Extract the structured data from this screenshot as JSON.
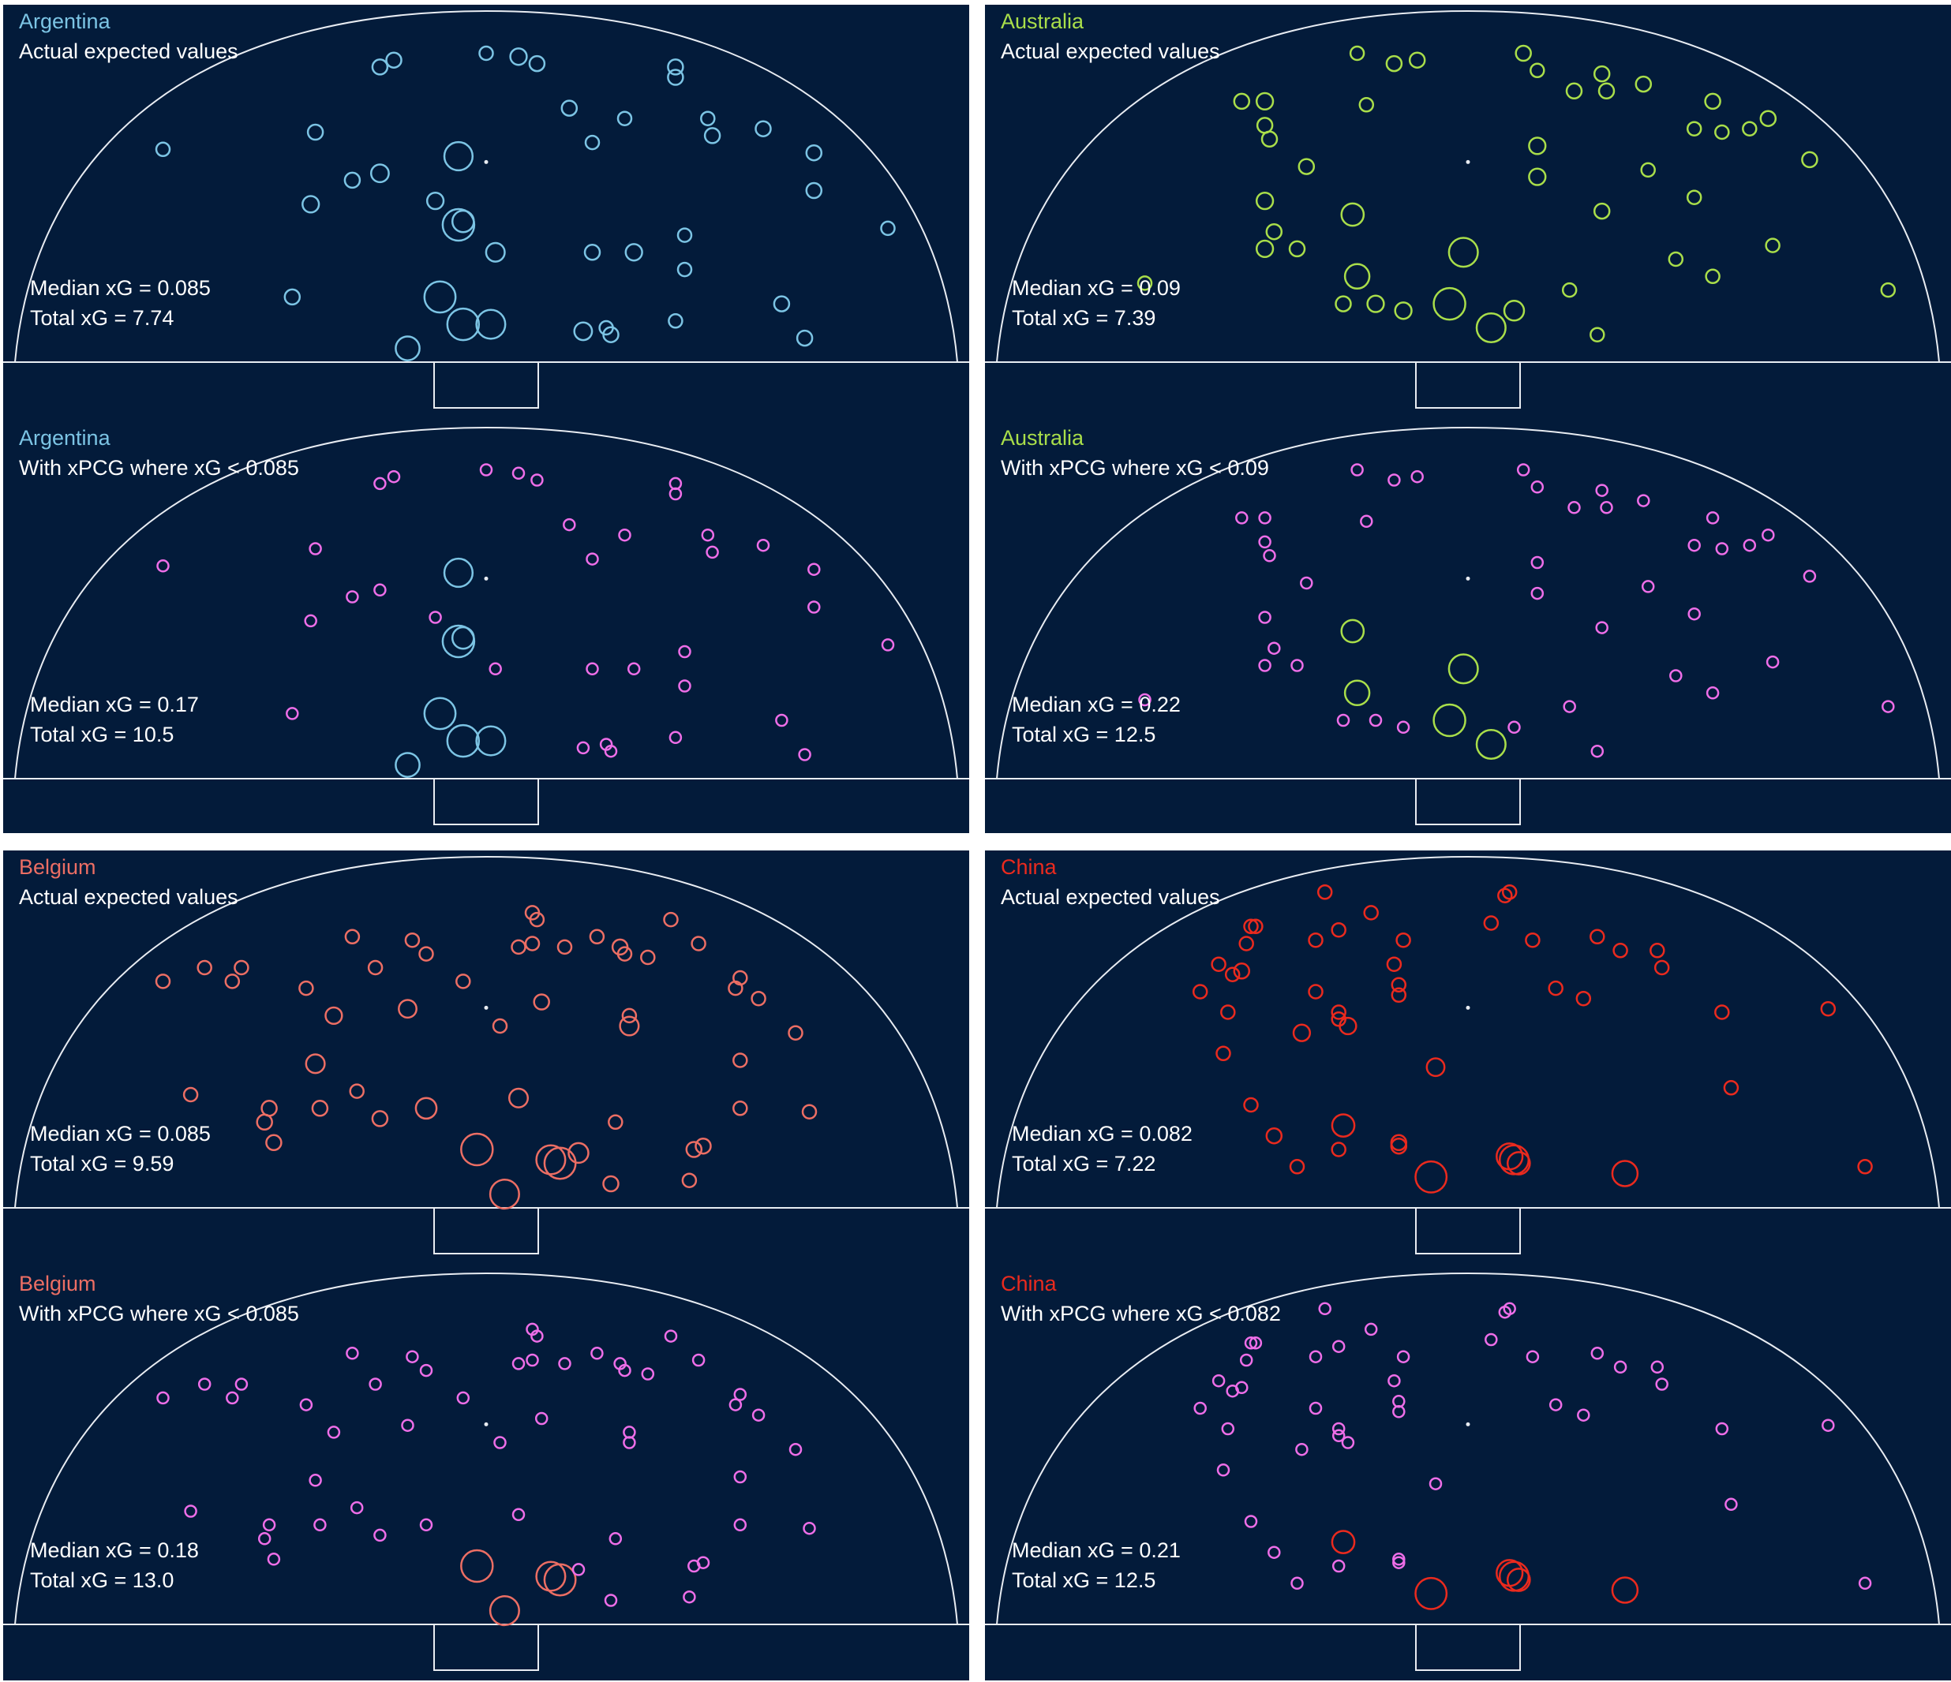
{
  "colors": {
    "background": "#ffffff",
    "panel": "#031b3a",
    "pitch_lines": "#e8ecf2",
    "text": "#ffffff",
    "xpcg": "#ee6ee8"
  },
  "chart_data": [
    {
      "id": "argentina",
      "type": "scatter",
      "team": "Argentina",
      "team_color": "#7cc4e4",
      "x_range": [
        -100,
        100
      ],
      "y_range": [
        0,
        100
      ],
      "shots": [
        {
          "x": -70,
          "y": 62,
          "xg": 0.02
        },
        {
          "x": -37,
          "y": 67,
          "xg": 0.03
        },
        {
          "x": -38,
          "y": 46,
          "xg": 0.04
        },
        {
          "x": -29,
          "y": 53,
          "xg": 0.03
        },
        {
          "x": -23,
          "y": 55,
          "xg": 0.05
        },
        {
          "x": -42,
          "y": 19,
          "xg": 0.03
        },
        {
          "x": -23,
          "y": 86,
          "xg": 0.03
        },
        {
          "x": -20,
          "y": 88,
          "xg": 0.03
        },
        {
          "x": -11,
          "y": 47,
          "xg": 0.04
        },
        {
          "x": 0,
          "y": 90,
          "xg": 0.02
        },
        {
          "x": 7,
          "y": 89,
          "xg": 0.04
        },
        {
          "x": 11,
          "y": 87,
          "xg": 0.03
        },
        {
          "x": 18,
          "y": 74,
          "xg": 0.03
        },
        {
          "x": 23,
          "y": 64,
          "xg": 0.02
        },
        {
          "x": 30,
          "y": 71,
          "xg": 0.02
        },
        {
          "x": 41,
          "y": 86,
          "xg": 0.03
        },
        {
          "x": 41,
          "y": 83,
          "xg": 0.03
        },
        {
          "x": 48,
          "y": 71,
          "xg": 0.02
        },
        {
          "x": 49,
          "y": 66,
          "xg": 0.03
        },
        {
          "x": 60,
          "y": 68,
          "xg": 0.03
        },
        {
          "x": 71,
          "y": 61,
          "xg": 0.03
        },
        {
          "x": 71,
          "y": 50,
          "xg": 0.03
        },
        {
          "x": 87,
          "y": 39,
          "xg": 0.02
        },
        {
          "x": 43,
          "y": 37,
          "xg": 0.02
        },
        {
          "x": 43,
          "y": 27,
          "xg": 0.02
        },
        {
          "x": 23,
          "y": 32,
          "xg": 0.03
        },
        {
          "x": 32,
          "y": 32,
          "xg": 0.04
        },
        {
          "x": 41,
          "y": 12,
          "xg": 0.02
        },
        {
          "x": 64,
          "y": 17,
          "xg": 0.03
        },
        {
          "x": 69,
          "y": 7,
          "xg": 0.03
        },
        {
          "x": 27,
          "y": 8,
          "xg": 0.03
        },
        {
          "x": 26,
          "y": 10,
          "xg": 0.02
        },
        {
          "x": 21,
          "y": 9,
          "xg": 0.05
        },
        {
          "x": -5,
          "y": 41,
          "xg": 0.09
        },
        {
          "x": -6,
          "y": 60,
          "xg": 0.19
        },
        {
          "x": -6,
          "y": 40,
          "xg": 0.25
        },
        {
          "x": 2,
          "y": 32,
          "xg": 0.06
        },
        {
          "x": -10,
          "y": 19,
          "xg": 0.24
        },
        {
          "x": -5,
          "y": 11,
          "xg": 0.25
        },
        {
          "x": 1,
          "y": 11,
          "xg": 0.2
        },
        {
          "x": -17,
          "y": 4,
          "xg": 0.12
        }
      ],
      "panels": [
        {
          "title": "Argentina",
          "subtitle": "Actual expected values",
          "median_label": "Median xG = 0.085",
          "total_label": "Total xG = 7.74"
        },
        {
          "title": "Argentina",
          "subtitle": "With xPCG where xG < 0.085",
          "median_label": "Median xG = 0.17",
          "total_label": "Total xG = 10.5"
        }
      ]
    },
    {
      "id": "australia",
      "type": "scatter",
      "team": "Australia",
      "team_color": "#a9de4a",
      "x_range": [
        -100,
        100
      ],
      "y_range": [
        0,
        100
      ],
      "shots": [
        {
          "x": -70,
          "y": 23,
          "xg": 0.02
        },
        {
          "x": -49,
          "y": 76,
          "xg": 0.03
        },
        {
          "x": -44,
          "y": 76,
          "xg": 0.04
        },
        {
          "x": -44,
          "y": 69,
          "xg": 0.03
        },
        {
          "x": -43,
          "y": 65,
          "xg": 0.03
        },
        {
          "x": -35,
          "y": 57,
          "xg": 0.03
        },
        {
          "x": -44,
          "y": 47,
          "xg": 0.04
        },
        {
          "x": -42,
          "y": 38,
          "xg": 0.03
        },
        {
          "x": -44,
          "y": 33,
          "xg": 0.04
        },
        {
          "x": -37,
          "y": 33,
          "xg": 0.03
        },
        {
          "x": -24,
          "y": 90,
          "xg": 0.02
        },
        {
          "x": -16,
          "y": 87,
          "xg": 0.03
        },
        {
          "x": -11,
          "y": 88,
          "xg": 0.03
        },
        {
          "x": -22,
          "y": 75,
          "xg": 0.02
        },
        {
          "x": 12,
          "y": 90,
          "xg": 0.03
        },
        {
          "x": 15,
          "y": 85,
          "xg": 0.02
        },
        {
          "x": 23,
          "y": 79,
          "xg": 0.03
        },
        {
          "x": 29,
          "y": 84,
          "xg": 0.03
        },
        {
          "x": 30,
          "y": 79,
          "xg": 0.03
        },
        {
          "x": 38,
          "y": 81,
          "xg": 0.03
        },
        {
          "x": 53,
          "y": 76,
          "xg": 0.03
        },
        {
          "x": 49,
          "y": 68,
          "xg": 0.02
        },
        {
          "x": 55,
          "y": 67,
          "xg": 0.02
        },
        {
          "x": 61,
          "y": 68,
          "xg": 0.02
        },
        {
          "x": 65,
          "y": 71,
          "xg": 0.03
        },
        {
          "x": 74,
          "y": 59,
          "xg": 0.03
        },
        {
          "x": 15,
          "y": 63,
          "xg": 0.04
        },
        {
          "x": 15,
          "y": 54,
          "xg": 0.04
        },
        {
          "x": 39,
          "y": 56,
          "xg": 0.02
        },
        {
          "x": 49,
          "y": 48,
          "xg": 0.02
        },
        {
          "x": 29,
          "y": 44,
          "xg": 0.03
        },
        {
          "x": 45,
          "y": 30,
          "xg": 0.02
        },
        {
          "x": 53,
          "y": 25,
          "xg": 0.02
        },
        {
          "x": 66,
          "y": 34,
          "xg": 0.02
        },
        {
          "x": 91,
          "y": 21,
          "xg": 0.02
        },
        {
          "x": 22,
          "y": 21,
          "xg": 0.02
        },
        {
          "x": 28,
          "y": 8,
          "xg": 0.02
        },
        {
          "x": -25,
          "y": 43,
          "xg": 0.1
        },
        {
          "x": -24,
          "y": 25,
          "xg": 0.13
        },
        {
          "x": -27,
          "y": 17,
          "xg": 0.03
        },
        {
          "x": -20,
          "y": 17,
          "xg": 0.04
        },
        {
          "x": -14,
          "y": 15,
          "xg": 0.04
        },
        {
          "x": -4,
          "y": 17,
          "xg": 0.25
        },
        {
          "x": -1,
          "y": 32,
          "xg": 0.2
        },
        {
          "x": 5,
          "y": 10,
          "xg": 0.2
        },
        {
          "x": 10,
          "y": 15,
          "xg": 0.07
        }
      ],
      "panels": [
        {
          "title": "Australia",
          "subtitle": "Actual expected values",
          "median_label": "Median xG = 0.09",
          "total_label": "Total xG = 7.39"
        },
        {
          "title": "Australia",
          "subtitle": "With xPCG where xG < 0.09",
          "median_label": "Median xG = 0.22",
          "total_label": "Total xG = 12.5"
        }
      ]
    },
    {
      "id": "belgium",
      "type": "scatter",
      "team": "Belgium",
      "team_color": "#ec6e64",
      "x_range": [
        -100,
        100
      ],
      "y_range": [
        0,
        100
      ],
      "shots": [
        {
          "x": -70,
          "y": 66,
          "xg": 0.02
        },
        {
          "x": -61,
          "y": 70,
          "xg": 0.02
        },
        {
          "x": -55,
          "y": 66,
          "xg": 0.02
        },
        {
          "x": -53,
          "y": 70,
          "xg": 0.02
        },
        {
          "x": -39,
          "y": 64,
          "xg": 0.02
        },
        {
          "x": -29,
          "y": 79,
          "xg": 0.02
        },
        {
          "x": -24,
          "y": 70,
          "xg": 0.02
        },
        {
          "x": -16,
          "y": 78,
          "xg": 0.02
        },
        {
          "x": -13,
          "y": 74,
          "xg": 0.02
        },
        {
          "x": -5,
          "y": 66,
          "xg": 0.02
        },
        {
          "x": 7,
          "y": 76,
          "xg": 0.02
        },
        {
          "x": 10,
          "y": 77,
          "xg": 0.02
        },
        {
          "x": 10,
          "y": 86,
          "xg": 0.02
        },
        {
          "x": 11,
          "y": 84,
          "xg": 0.02
        },
        {
          "x": 17,
          "y": 76,
          "xg": 0.02
        },
        {
          "x": 24,
          "y": 79,
          "xg": 0.02
        },
        {
          "x": 29,
          "y": 76,
          "xg": 0.03
        },
        {
          "x": 30,
          "y": 74,
          "xg": 0.02
        },
        {
          "x": 35,
          "y": 73,
          "xg": 0.02
        },
        {
          "x": 40,
          "y": 84,
          "xg": 0.02
        },
        {
          "x": 46,
          "y": 77,
          "xg": 0.02
        },
        {
          "x": 55,
          "y": 67,
          "xg": 0.02
        },
        {
          "x": 54,
          "y": 64,
          "xg": 0.02
        },
        {
          "x": 59,
          "y": 61,
          "xg": 0.02
        },
        {
          "x": 67,
          "y": 51,
          "xg": 0.02
        },
        {
          "x": 55,
          "y": 43,
          "xg": 0.02
        },
        {
          "x": 55,
          "y": 29,
          "xg": 0.02
        },
        {
          "x": 70,
          "y": 28,
          "xg": 0.02
        },
        {
          "x": 12,
          "y": 60,
          "xg": 0.03
        },
        {
          "x": 31,
          "y": 56,
          "xg": 0.02
        },
        {
          "x": 31,
          "y": 53,
          "xg": 0.06
        },
        {
          "x": 3,
          "y": 53,
          "xg": 0.02
        },
        {
          "x": -33,
          "y": 56,
          "xg": 0.04
        },
        {
          "x": -17,
          "y": 58,
          "xg": 0.05
        },
        {
          "x": -37,
          "y": 42,
          "xg": 0.06
        },
        {
          "x": -64,
          "y": 33,
          "xg": 0.02
        },
        {
          "x": -47,
          "y": 29,
          "xg": 0.03
        },
        {
          "x": -36,
          "y": 29,
          "xg": 0.03
        },
        {
          "x": -28,
          "y": 34,
          "xg": 0.02
        },
        {
          "x": -23,
          "y": 26,
          "xg": 0.03
        },
        {
          "x": -13,
          "y": 29,
          "xg": 0.08
        },
        {
          "x": -48,
          "y": 25,
          "xg": 0.03
        },
        {
          "x": -46,
          "y": 19,
          "xg": 0.03
        },
        {
          "x": 7,
          "y": 32,
          "xg": 0.06
        },
        {
          "x": 28,
          "y": 25,
          "xg": 0.02
        },
        {
          "x": 45,
          "y": 17,
          "xg": 0.03
        },
        {
          "x": 47,
          "y": 18,
          "xg": 0.03
        },
        {
          "x": 44,
          "y": 8,
          "xg": 0.02
        },
        {
          "x": 27,
          "y": 7,
          "xg": 0.03
        },
        {
          "x": -2,
          "y": 17,
          "xg": 0.25
        },
        {
          "x": 14,
          "y": 14,
          "xg": 0.2
        },
        {
          "x": 16,
          "y": 13,
          "xg": 0.24
        },
        {
          "x": 20,
          "y": 16,
          "xg": 0.07
        },
        {
          "x": 4,
          "y": 4,
          "xg": 0.2
        }
      ],
      "panels": [
        {
          "title": "Belgium",
          "subtitle": "Actual expected values",
          "median_label": "Median xG = 0.085",
          "total_label": "Total xG = 9.59"
        },
        {
          "title": "Belgium",
          "subtitle": "With xPCG where xG < 0.085",
          "median_label": "Median xG = 0.18",
          "total_label": "Total xG = 13.0"
        }
      ]
    },
    {
      "id": "china",
      "type": "scatter",
      "team": "China",
      "team_color": "#ea2a1e",
      "x_range": [
        -100,
        100
      ],
      "y_range": [
        0,
        100
      ],
      "shots": [
        {
          "x": -31,
          "y": 92,
          "xg": 0.02
        },
        {
          "x": -21,
          "y": 86,
          "xg": 0.02
        },
        {
          "x": -46,
          "y": 82,
          "xg": 0.02
        },
        {
          "x": -47,
          "y": 82,
          "xg": 0.02
        },
        {
          "x": -33,
          "y": 78,
          "xg": 0.02
        },
        {
          "x": -28,
          "y": 81,
          "xg": 0.02
        },
        {
          "x": -14,
          "y": 78,
          "xg": 0.02
        },
        {
          "x": -48,
          "y": 77,
          "xg": 0.02
        },
        {
          "x": -54,
          "y": 71,
          "xg": 0.02
        },
        {
          "x": -51,
          "y": 68,
          "xg": 0.02
        },
        {
          "x": -49,
          "y": 69,
          "xg": 0.03
        },
        {
          "x": -58,
          "y": 63,
          "xg": 0.02
        },
        {
          "x": -52,
          "y": 57,
          "xg": 0.02
        },
        {
          "x": -33,
          "y": 63,
          "xg": 0.02
        },
        {
          "x": -28,
          "y": 57,
          "xg": 0.02
        },
        {
          "x": -28,
          "y": 55,
          "xg": 0.02
        },
        {
          "x": -26,
          "y": 53,
          "xg": 0.04
        },
        {
          "x": -36,
          "y": 51,
          "xg": 0.04
        },
        {
          "x": -16,
          "y": 71,
          "xg": 0.02
        },
        {
          "x": -15,
          "y": 65,
          "xg": 0.02
        },
        {
          "x": -15,
          "y": 62,
          "xg": 0.02
        },
        {
          "x": -53,
          "y": 45,
          "xg": 0.02
        },
        {
          "x": -47,
          "y": 30,
          "xg": 0.02
        },
        {
          "x": -42,
          "y": 21,
          "xg": 0.03
        },
        {
          "x": -37,
          "y": 12,
          "xg": 0.02
        },
        {
          "x": -28,
          "y": 17,
          "xg": 0.02
        },
        {
          "x": -15,
          "y": 19,
          "xg": 0.03
        },
        {
          "x": -15,
          "y": 18,
          "xg": 0.03
        },
        {
          "x": 8,
          "y": 91,
          "xg": 0.02
        },
        {
          "x": 9,
          "y": 92,
          "xg": 0.02
        },
        {
          "x": 5,
          "y": 83,
          "xg": 0.02
        },
        {
          "x": 14,
          "y": 78,
          "xg": 0.02
        },
        {
          "x": 28,
          "y": 79,
          "xg": 0.02
        },
        {
          "x": 33,
          "y": 75,
          "xg": 0.02
        },
        {
          "x": 41,
          "y": 75,
          "xg": 0.02
        },
        {
          "x": 42,
          "y": 70,
          "xg": 0.02
        },
        {
          "x": 19,
          "y": 64,
          "xg": 0.02
        },
        {
          "x": 25,
          "y": 61,
          "xg": 0.02
        },
        {
          "x": 55,
          "y": 57,
          "xg": 0.02
        },
        {
          "x": 78,
          "y": 58,
          "xg": 0.02
        },
        {
          "x": 57,
          "y": 35,
          "xg": 0.02
        },
        {
          "x": 86,
          "y": 12,
          "xg": 0.02
        },
        {
          "x": -7,
          "y": 41,
          "xg": 0.05
        },
        {
          "x": -27,
          "y": 24,
          "xg": 0.1
        },
        {
          "x": 9,
          "y": 15,
          "xg": 0.15
        },
        {
          "x": 10,
          "y": 14,
          "xg": 0.2
        },
        {
          "x": 11,
          "y": 13,
          "xg": 0.1
        },
        {
          "x": -8,
          "y": 9,
          "xg": 0.24
        },
        {
          "x": 34,
          "y": 10,
          "xg": 0.14
        }
      ],
      "panels": [
        {
          "title": "China",
          "subtitle": "Actual expected values",
          "median_label": "Median xG = 0.082",
          "total_label": "Total xG = 7.22"
        },
        {
          "title": "China",
          "subtitle": "With xPCG where xG < 0.082",
          "median_label": "Median xG = 0.21",
          "total_label": "Total xG = 12.5"
        }
      ]
    }
  ]
}
